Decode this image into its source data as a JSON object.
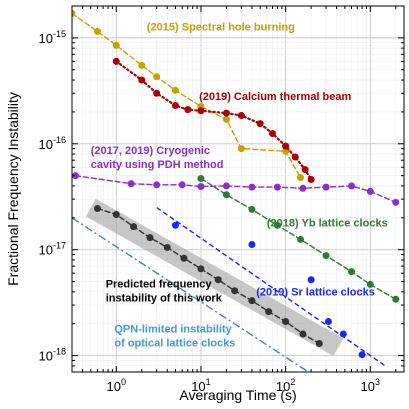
{
  "chart_data": {
    "type": "scatter",
    "title": "",
    "xlabel": "Averaging Time (s)",
    "ylabel": "Fractional Frequency Instability",
    "xscale": "log",
    "yscale": "log",
    "xlim": [
      0.3,
      2500
    ],
    "ylim": [
      7e-19,
      2e-15
    ],
    "grid": true,
    "x_ticks": [
      {
        "value": 1,
        "base": "10",
        "exp": "0"
      },
      {
        "value": 10,
        "base": "10",
        "exp": "1"
      },
      {
        "value": 100,
        "base": "10",
        "exp": "2"
      },
      {
        "value": 1000,
        "base": "10",
        "exp": "3"
      }
    ],
    "y_ticks": [
      {
        "value": 1e-18,
        "base": "10",
        "exp": "-18"
      },
      {
        "value": 1e-17,
        "base": "10",
        "exp": "-17"
      },
      {
        "value": 1e-16,
        "base": "10",
        "exp": "-16"
      },
      {
        "value": 1e-15,
        "base": "10",
        "exp": "-15"
      }
    ],
    "series": [
      {
        "color": "#c4a000",
        "marker": "circle",
        "line": "dashed",
        "points": [
          [
            0.3,
            1.7e-15
          ],
          [
            0.6,
            1.15e-15
          ],
          [
            1.0,
            8.5e-16
          ],
          [
            2.0,
            5.5e-16
          ],
          [
            3.0,
            4.3e-16
          ],
          [
            5.0,
            3.2e-16
          ],
          [
            10,
            2.25e-16
          ],
          [
            20,
            1.7e-16
          ],
          [
            30,
            9e-17
          ],
          [
            100,
            8.5e-17
          ],
          [
            150,
            4.8e-17
          ]
        ]
      },
      {
        "color": "#aa0000",
        "marker": "circle",
        "line": "dotted",
        "points": [
          [
            1.0,
            6e-16
          ],
          [
            2.0,
            4e-16
          ],
          [
            3.0,
            3e-16
          ],
          [
            5.0,
            2.3e-16
          ],
          [
            7.0,
            2.1e-16
          ],
          [
            10,
            2.05e-16
          ],
          [
            20,
            1.95e-16
          ],
          [
            30,
            1.85e-16
          ],
          [
            50,
            1.55e-16
          ],
          [
            70,
            1.25e-16
          ],
          [
            100,
            9.5e-17
          ],
          [
            130,
            7.5e-17
          ],
          [
            170,
            5.7e-17
          ],
          [
            200,
            4.6e-17
          ]
        ]
      },
      {
        "color": "#8b2fc9",
        "marker": "circle",
        "line": "dashed",
        "points": [
          [
            0.33,
            5e-17
          ],
          [
            1.5,
            4.2e-17
          ],
          [
            3.0,
            4.1e-17
          ],
          [
            6.0,
            4.1e-17
          ],
          [
            10,
            3.95e-17
          ],
          [
            20,
            4e-17
          ],
          [
            40,
            3.9e-17
          ],
          [
            80,
            3.9e-17
          ],
          [
            160,
            3.8e-17
          ],
          [
            300,
            3.9e-17
          ],
          [
            600,
            4e-17
          ],
          [
            1000,
            3.55e-17
          ],
          [
            2000,
            2.8e-17
          ]
        ]
      },
      {
        "color": "#2e7a34",
        "marker": "circle",
        "line": "dashed",
        "points": [
          [
            10,
            4.7e-17
          ],
          [
            20,
            3.3e-17
          ],
          [
            40,
            2.4e-17
          ],
          [
            80,
            1.7e-17
          ],
          [
            150,
            1.25e-17
          ],
          [
            300,
            8.8e-18
          ],
          [
            600,
            6.2e-18
          ],
          [
            1000,
            4.7e-18
          ],
          [
            2000,
            3.4e-18
          ]
        ]
      },
      {
        "color": "#1f24ff",
        "marker": "circle",
        "line": "none",
        "points": [
          [
            5,
            1.7e-17
          ],
          [
            40,
            1.12e-17
          ],
          [
            200,
            5.2e-18
          ],
          [
            320,
            2.1e-18
          ],
          [
            480,
            1.6e-18
          ],
          [
            800,
            1.02e-18
          ]
        ]
      },
      {
        "color": "#333333",
        "marker": "circle",
        "line": "dashed",
        "points": [
          [
            0.6,
            2.45e-17
          ],
          [
            1.0,
            2.15e-17
          ],
          [
            1.6,
            1.65e-17
          ],
          [
            2.5,
            1.3e-17
          ],
          [
            4.0,
            1.05e-17
          ],
          [
            6.3,
            8.3e-18
          ],
          [
            10,
            6.6e-18
          ],
          [
            16,
            5.2e-18
          ],
          [
            25,
            4.1e-18
          ],
          [
            40,
            3.3e-18
          ],
          [
            63,
            2.6e-18
          ],
          [
            100,
            2.1e-18
          ],
          [
            160,
            1.6e-18
          ],
          [
            250,
            1.3e-18
          ]
        ]
      }
    ],
    "reference_lines": [
      {
        "color": "#4a7fc1",
        "style": "dashdot",
        "from": [
          0.3,
          2e-17
        ],
        "to": [
          250,
          6e-19
        ]
      },
      {
        "color": "#1f24ff",
        "style": "dashed",
        "from": [
          3,
          2.5e-17
        ],
        "to": [
          1500,
          8e-19
        ]
      }
    ],
    "band": {
      "color": "#999999",
      "opacity": 0.55,
      "from": [
        0.5,
        2.5e-17
      ],
      "to": [
        420,
        1.2e-18
      ],
      "width_decades": 0.22
    },
    "annotations": [
      {
        "lines": [
          "(2015) Spectral hole burning"
        ],
        "color": "#c4a000",
        "at": [
          2.3,
          1.18e-15
        ]
      },
      {
        "lines": [
          "(2019) Calcium thermal beam"
        ],
        "color": "#aa0000",
        "at": [
          9.5,
          2.6e-16
        ]
      },
      {
        "lines": [
          "(2017, 2019) Cryogenic",
          "cavity using PDH method"
        ],
        "color": "#8b2fc9",
        "at": [
          0.5,
          8e-17
        ]
      },
      {
        "lines": [
          "(2018)   Yb lattice clocks"
        ],
        "color": "#2e7a34",
        "at": [
          60,
          1.65e-17
        ]
      },
      {
        "lines": [
          "(2019)  Sr lattice clocks"
        ],
        "color": "#1f24ff",
        "at": [
          45,
          3.7e-18
        ]
      },
      {
        "lines": [
          "Predicted frequency",
          "instability of this work"
        ],
        "color": "#000000",
        "at": [
          0.75,
          4.4e-18
        ]
      },
      {
        "lines": [
          "QPN-limited instability",
          "of optical lattice clocks"
        ],
        "color": "#3e9ccf",
        "at": [
          0.95,
          1.65e-18
        ]
      }
    ]
  }
}
